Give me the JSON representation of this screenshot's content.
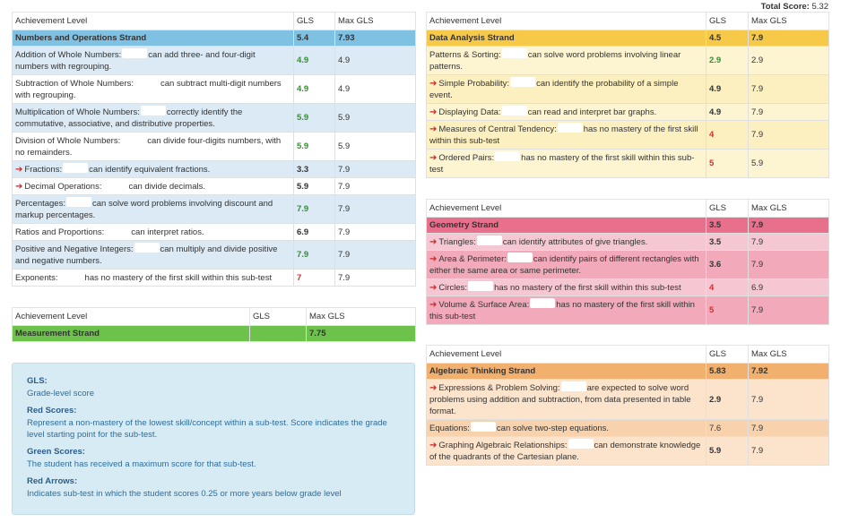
{
  "total": {
    "label": "Total Score:",
    "value": "5.32"
  },
  "headers": {
    "level": "Achievement Level",
    "gls": "GLS",
    "max": "Max GLS"
  },
  "numbers": {
    "strand": "Numbers and Operations Strand",
    "gls": "5.4",
    "max": "7.93",
    "rows": [
      {
        "name": "Addition of Whole Numbers:",
        "desc": "can add three- and four-digit numbers with regrouping.",
        "gls": "4.9",
        "max": "4.9",
        "cls": "green",
        "arrow": false
      },
      {
        "name": "Subtraction of Whole Numbers:",
        "desc": "can subtract multi-digit numbers with regrouping.",
        "gls": "4.9",
        "max": "4.9",
        "cls": "green",
        "arrow": false
      },
      {
        "name": "Multiplication of Whole Numbers:",
        "desc": "correctly identify the commutative, associative, and distributive properties.",
        "gls": "5.9",
        "max": "5.9",
        "cls": "green",
        "arrow": false
      },
      {
        "name": "Division of Whole Numbers:",
        "desc": "can divide four-digits numbers, with no remainders.",
        "gls": "5.9",
        "max": "5.9",
        "cls": "green",
        "arrow": false
      },
      {
        "name": "Fractions:",
        "desc": "can identify equivalent fractions.",
        "gls": "3.3",
        "max": "7.9",
        "cls": "bold",
        "arrow": true
      },
      {
        "name": "Decimal Operations:",
        "desc": "can divide decimals.",
        "gls": "5.9",
        "max": "7.9",
        "cls": "bold",
        "arrow": true
      },
      {
        "name": "Percentages:",
        "desc": "can solve word problems involving discount and markup percentages.",
        "gls": "7.9",
        "max": "7.9",
        "cls": "green",
        "arrow": false
      },
      {
        "name": "Ratios and Proportions:",
        "desc": "can interpret ratios.",
        "gls": "6.9",
        "max": "7.9",
        "cls": "bold",
        "arrow": false
      },
      {
        "name": "Positive and Negative Integers:",
        "desc": "can multiply and divide positive and negative numbers.",
        "gls": "7.9",
        "max": "7.9",
        "cls": "green",
        "arrow": false
      },
      {
        "name": "Exponents:",
        "desc": "has no mastery of the first skill within this sub-test",
        "gls": "7",
        "max": "7.9",
        "cls": "red",
        "arrow": false
      }
    ]
  },
  "measure": {
    "strand": "Measurement Strand",
    "gls": "",
    "max": "7.75"
  },
  "data": {
    "strand": "Data Analysis Strand",
    "gls": "4.5",
    "max": "7.9",
    "rows": [
      {
        "name": "Patterns & Sorting:",
        "desc": "can solve word problems involving linear patterns.",
        "gls": "2.9",
        "max": "2.9",
        "cls": "green",
        "arrow": false
      },
      {
        "name": "Simple Probability:",
        "desc": "can identify the probability of a simple event.",
        "gls": "4.9",
        "max": "7.9",
        "cls": "bold",
        "arrow": true
      },
      {
        "name": "Displaying Data:",
        "desc": "can read and interpret bar graphs.",
        "gls": "4.9",
        "max": "7.9",
        "cls": "bold",
        "arrow": true
      },
      {
        "name": "Measures of Central Tendency:",
        "desc": "has no mastery of the first skill within this sub-test",
        "gls": "4",
        "max": "7.9",
        "cls": "red",
        "arrow": true
      },
      {
        "name": "Ordered Pairs:",
        "desc": "has no mastery of the first skill within this sub-test",
        "gls": "5",
        "max": "5.9",
        "cls": "red",
        "arrow": true
      }
    ]
  },
  "geom": {
    "strand": "Geometry Strand",
    "gls": "3.5",
    "max": "7.9",
    "rows": [
      {
        "name": "Triangles:",
        "desc": "can identify attributes of give triangles.",
        "gls": "3.5",
        "max": "7.9",
        "cls": "bold",
        "arrow": true
      },
      {
        "name": "Area & Perimeter:",
        "desc": "can identify pairs of different rectangles with either the same area or same perimeter.",
        "gls": "3.6",
        "max": "7.9",
        "cls": "bold",
        "arrow": true
      },
      {
        "name": "Circles:",
        "desc": "has no mastery of the first skill within this sub-test",
        "gls": "4",
        "max": "6.9",
        "cls": "red",
        "arrow": true
      },
      {
        "name": "Volume & Surface Area:",
        "desc": "has no mastery of the first skill within this sub-test",
        "gls": "5",
        "max": "7.9",
        "cls": "red",
        "arrow": true
      }
    ]
  },
  "alg": {
    "strand": "Algebraic Thinking Strand",
    "gls": "5.83",
    "max": "7.92",
    "rows": [
      {
        "name": "Expressions & Problem Solving:",
        "desc": "are expected to solve word problems using addition and subtraction, from data presented in table format.",
        "gls": "2.9",
        "max": "7.9",
        "cls": "bold",
        "arrow": true
      },
      {
        "name": "Equations:",
        "desc": "can solve two-step equations.",
        "gls": "7.6",
        "max": "7.9",
        "cls": "normal",
        "arrow": false
      },
      {
        "name": "Graphing Algebraic Relationships:",
        "desc": "can demonstrate knowledge of the quadrants of the Cartesian plane.",
        "gls": "5.9",
        "max": "7.9",
        "cls": "bold",
        "arrow": true
      }
    ]
  },
  "legend": [
    {
      "title": "GLS:",
      "desc": "Grade-level score"
    },
    {
      "title": "Red Scores:",
      "desc": "Represent a non-mastery of the lowest skill/concept within a sub-test. Score indicates the grade level starting point for the sub-test."
    },
    {
      "title": "Green Scores:",
      "desc": "The student has received a maximum score for that sub-test."
    },
    {
      "title": "Red Arrows:",
      "desc": "Indicates sub-test in which the student scores 0.25 or more years below grade level"
    }
  ]
}
